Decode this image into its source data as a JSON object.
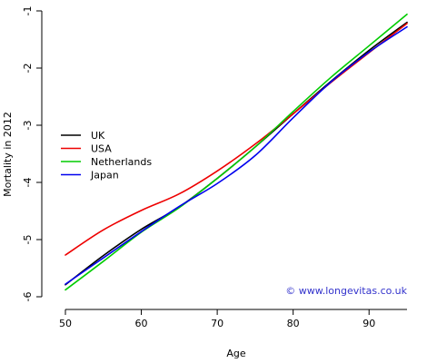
{
  "chart_data": {
    "type": "line",
    "xlabel": "Age",
    "ylabel": "Mortality in 2012",
    "xlim": [
      50,
      95
    ],
    "ylim": [
      -6,
      -1
    ],
    "xticks": [
      50,
      60,
      70,
      80,
      90
    ],
    "yticks": [
      -6,
      -5,
      -4,
      -3,
      -2,
      -1
    ],
    "grid": false,
    "legend_position": "left",
    "credit": "© www.longevitas.co.uk",
    "credit_color": "#3333cc",
    "x": [
      50,
      55,
      60,
      65,
      70,
      75,
      80,
      85,
      90,
      95
    ],
    "series": [
      {
        "name": "UK",
        "color": "#000000",
        "values": [
          -5.79,
          -5.28,
          -4.82,
          -4.43,
          -3.93,
          -3.38,
          -2.8,
          -2.23,
          -1.69,
          -1.2
        ]
      },
      {
        "name": "USA",
        "color": "#ee0000",
        "values": [
          -5.27,
          -4.83,
          -4.49,
          -4.2,
          -3.8,
          -3.33,
          -2.8,
          -2.25,
          -1.73,
          -1.22
        ]
      },
      {
        "name": "Netherlands",
        "color": "#00cc00",
        "values": [
          -5.88,
          -5.38,
          -4.87,
          -4.44,
          -3.93,
          -3.38,
          -2.76,
          -2.16,
          -1.61,
          -1.06
        ]
      },
      {
        "name": "Japan",
        "color": "#0000ee",
        "values": [
          -5.78,
          -5.32,
          -4.86,
          -4.42,
          -4.02,
          -3.53,
          -2.87,
          -2.24,
          -1.72,
          -1.28
        ]
      }
    ]
  }
}
